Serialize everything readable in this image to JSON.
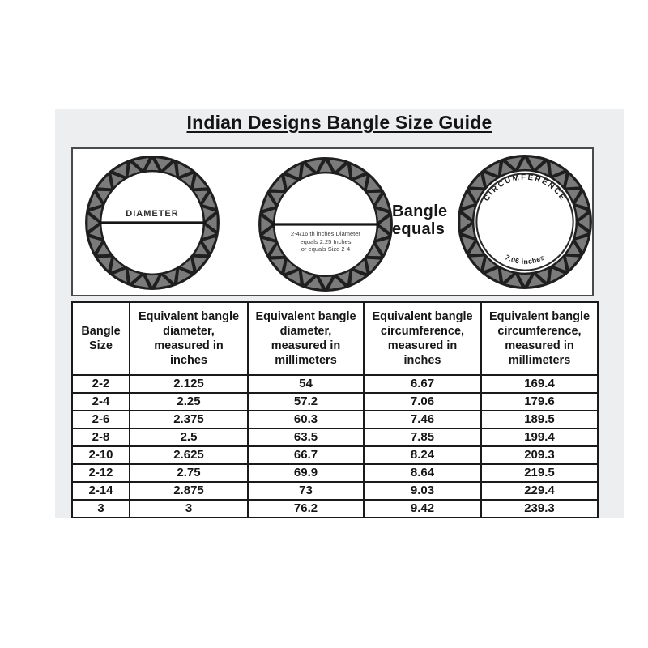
{
  "page": {
    "title": "Indian Designs Bangle Size Guide"
  },
  "diagram": {
    "diameter_label": "DIAMETER",
    "size_caption": "2-4/16 th inches Diameter\nequals 2.25 Inches\nor equals Size 2-4",
    "equals_label": "Bangle\nequals",
    "circumference_label": "CIRCUMFERENCE",
    "circumference_value": "7.06 inches"
  },
  "table": {
    "headers": [
      "Bangle\nSize",
      "Equivalent bangle\ndiameter,\nmeasured in\ninches",
      "Equivalent bangle\ndiameter,\nmeasured in\nmillimeters",
      "Equivalent bangle\ncircumference,\nmeasured in\ninches",
      "Equivalent bangle\ncircumference,\nmeasured in\nmillimeters"
    ],
    "rows": [
      [
        "2-2",
        "2.125",
        "54",
        "6.67",
        "169.4"
      ],
      [
        "2-4",
        "2.25",
        "57.2",
        "7.06",
        "179.6"
      ],
      [
        "2-6",
        "2.375",
        "60.3",
        "7.46",
        "189.5"
      ],
      [
        "2-8",
        "2.5",
        "63.5",
        "7.85",
        "199.4"
      ],
      [
        "2-10",
        "2.625",
        "66.7",
        "8.24",
        "209.3"
      ],
      [
        "2-12",
        "2.75",
        "69.9",
        "8.64",
        "219.5"
      ],
      [
        "2-14",
        "2.875",
        "73",
        "9.03",
        "229.4"
      ],
      [
        "3",
        "3",
        "76.2",
        "9.42",
        "239.3"
      ]
    ]
  },
  "colors": {
    "panel_bg": "#edeef0",
    "ring_dark": "#1f1f1f",
    "ring_gray": "#7b7b7b",
    "table_border": "#1a1a1a"
  }
}
